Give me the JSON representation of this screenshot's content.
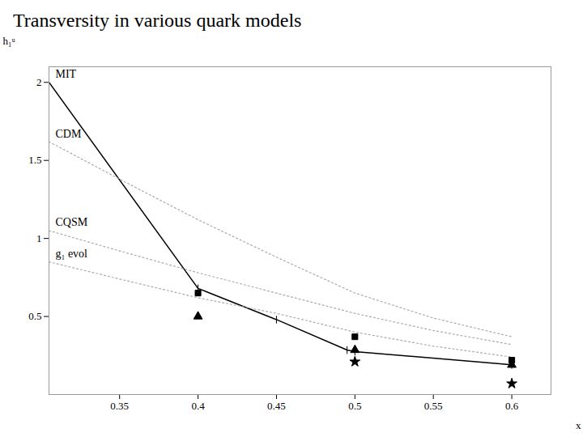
{
  "chart_data": {
    "type": "line",
    "title": "Transversity in various quark models",
    "x_label": "x",
    "y_label": "h₁ᵘ",
    "xlim": [
      0.305,
      0.625
    ],
    "xticks": [
      0.35,
      0.4,
      0.45,
      0.5,
      0.55,
      0.6
    ],
    "ylim": [
      0.0,
      2.1
    ],
    "yticks": [
      0.5,
      1,
      1.5,
      2
    ],
    "grid": false,
    "series": [
      {
        "name": "MIT",
        "type": "line",
        "color": "#000000",
        "line_style": "solid",
        "marker": "tick",
        "x": [
          0.305,
          0.4,
          0.45,
          0.495,
          0.5,
          0.6
        ],
        "values": [
          2.0,
          0.68,
          0.48,
          0.285,
          0.275,
          0.19
        ]
      },
      {
        "name": "CDM",
        "type": "line",
        "color": "#aaaaaa",
        "line_style": "dotted",
        "x": [
          0.305,
          0.35,
          0.4,
          0.45,
          0.5,
          0.55,
          0.6
        ],
        "values": [
          1.62,
          1.38,
          1.12,
          0.88,
          0.65,
          0.49,
          0.37
        ]
      },
      {
        "name": "CQSM",
        "type": "line",
        "color": "#aaaaaa",
        "line_style": "dotted",
        "x": [
          0.305,
          0.35,
          0.4,
          0.45,
          0.5,
          0.55,
          0.6
        ],
        "values": [
          1.05,
          0.92,
          0.78,
          0.65,
          0.52,
          0.41,
          0.32
        ]
      },
      {
        "name": "g₁ evol",
        "type": "line",
        "color": "#aaaaaa",
        "line_style": "dotted",
        "x": [
          0.305,
          0.35,
          0.4,
          0.45,
          0.5,
          0.55,
          0.6
        ],
        "values": [
          0.85,
          0.74,
          0.62,
          0.52,
          0.4,
          0.31,
          0.24
        ]
      },
      {
        "type": "scatter",
        "color": "#000000",
        "marker": "square",
        "x": [
          0.4,
          0.5,
          0.6
        ],
        "values": [
          0.65,
          0.37,
          0.22
        ]
      },
      {
        "type": "scatter",
        "color": "#000000",
        "marker": "triangle",
        "x": [
          0.4,
          0.5,
          0.6
        ],
        "values": [
          0.5,
          0.285,
          0.19
        ]
      },
      {
        "type": "scatter",
        "color": "#000000",
        "marker": "star",
        "x": [
          0.5,
          0.6
        ],
        "values": [
          0.21,
          0.07
        ]
      }
    ]
  }
}
